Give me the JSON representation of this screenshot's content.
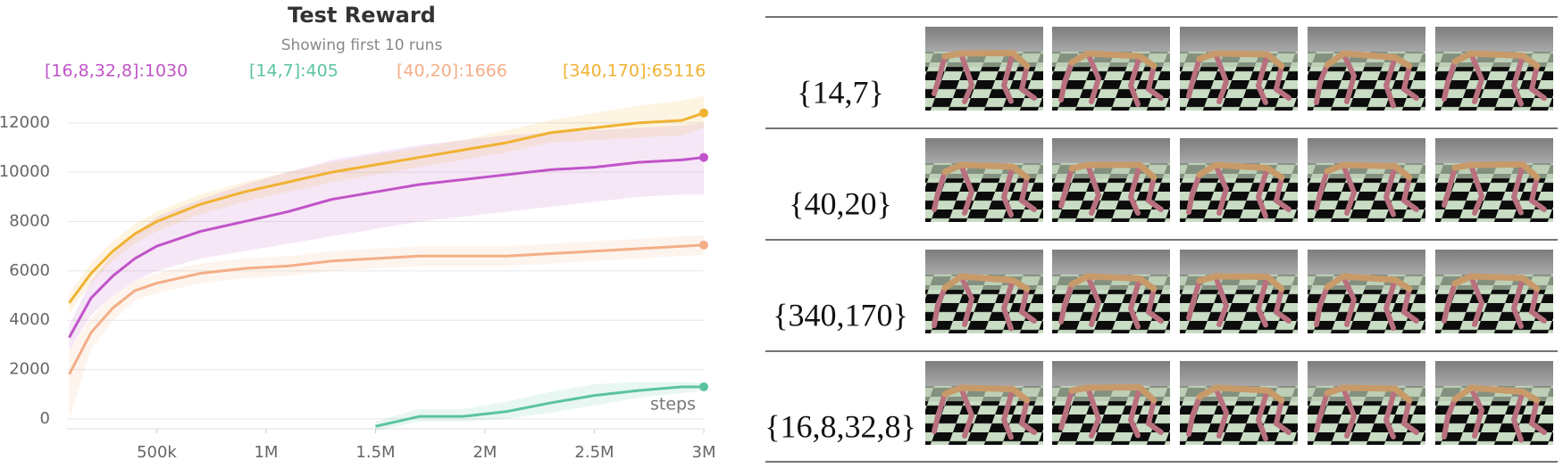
{
  "chart_data": {
    "type": "line",
    "title": "Test Reward",
    "subtitle": "Showing first 10 runs",
    "x_label": "steps",
    "x": [
      100000,
      200000,
      300000,
      400000,
      500000,
      700000,
      900000,
      1100000,
      1300000,
      1500000,
      1700000,
      1900000,
      2100000,
      2300000,
      2500000,
      2700000,
      2900000,
      3000000
    ],
    "xlim": [
      90000,
      3000000
    ],
    "xticks": [
      {
        "value": 500000,
        "label": "500k"
      },
      {
        "value": 1000000,
        "label": "1M"
      },
      {
        "value": 1500000,
        "label": "1.5M"
      },
      {
        "value": 2000000,
        "label": "2M"
      },
      {
        "value": 2500000,
        "label": "2.5M"
      },
      {
        "value": 3000000,
        "label": "3M"
      }
    ],
    "ylim": [
      -400,
      13150
    ],
    "yticks": [
      0,
      2000,
      4000,
      6000,
      8000,
      10000,
      12000
    ],
    "grid": true,
    "series": [
      {
        "name": "[16,8,32,8]:1030",
        "color": "#c054c8",
        "values": [
          3300,
          4900,
          5800,
          6500,
          7000,
          7600,
          8000,
          8400,
          8900,
          9200,
          9500,
          9700,
          9900,
          10100,
          10200,
          10400,
          10500,
          10600
        ],
        "band_upper": [
          3800,
          5600,
          6700,
          7500,
          8200,
          8900,
          9500,
          10000,
          10500,
          10800,
          11100,
          11300,
          11500,
          11600,
          11700,
          11800,
          11900,
          12000
        ],
        "band_lower": [
          2800,
          4200,
          5000,
          5600,
          6000,
          6500,
          6800,
          7100,
          7400,
          7700,
          8000,
          8200,
          8400,
          8600,
          8800,
          9000,
          9100,
          9100
        ]
      },
      {
        "name": "[14,7]:405",
        "color": "#5cc3a0",
        "values": [
          null,
          null,
          null,
          null,
          null,
          null,
          null,
          null,
          null,
          -300,
          100,
          100,
          300,
          650,
          950,
          1150,
          1300,
          1300
        ],
        "band_upper": [
          null,
          null,
          null,
          null,
          null,
          null,
          null,
          null,
          null,
          -100,
          400,
          400,
          700,
          1100,
          1400,
          1500,
          1500,
          1450
        ],
        "band_lower": [
          null,
          null,
          null,
          null,
          null,
          null,
          null,
          null,
          null,
          -500,
          -100,
          -100,
          0,
          250,
          550,
          850,
          1050,
          1150
        ]
      },
      {
        "name": "[40,20]:1666",
        "color": "#f4ae88",
        "values": [
          1800,
          3500,
          4500,
          5200,
          5500,
          5900,
          6100,
          6200,
          6400,
          6500,
          6600,
          6600,
          6600,
          6700,
          6800,
          6900,
          7000,
          7050
        ],
        "band_upper": [
          2800,
          4100,
          5000,
          5600,
          5900,
          6300,
          6500,
          6600,
          6800,
          6900,
          7000,
          7000,
          7000,
          7100,
          7200,
          7300,
          7400,
          7450
        ],
        "band_lower": [
          0,
          2800,
          4000,
          4800,
          5100,
          5500,
          5700,
          5800,
          6000,
          6100,
          6200,
          6200,
          6200,
          6300,
          6400,
          6500,
          6600,
          6650
        ]
      },
      {
        "name": "[340,170]:65116",
        "color": "#f0b232",
        "values": [
          4700,
          5900,
          6800,
          7500,
          8000,
          8700,
          9200,
          9600,
          10000,
          10300,
          10600,
          10900,
          11200,
          11600,
          11800,
          12000,
          12100,
          12400
        ],
        "band_upper": [
          5100,
          6300,
          7200,
          7900,
          8400,
          9100,
          9600,
          10000,
          10400,
          10700,
          11000,
          11300,
          11700,
          12100,
          12400,
          12700,
          12900,
          13100
        ],
        "band_lower": [
          4300,
          5500,
          6400,
          7100,
          7600,
          8300,
          8800,
          9200,
          9600,
          9900,
          10200,
          10500,
          10800,
          11200,
          11300,
          11400,
          11500,
          11800
        ]
      }
    ]
  },
  "table": {
    "rows": [
      {
        "label": "{14,7}"
      },
      {
        "label": "{40,20}"
      },
      {
        "label": "{340,170}"
      },
      {
        "label": "{16,8,32,8}"
      }
    ]
  }
}
